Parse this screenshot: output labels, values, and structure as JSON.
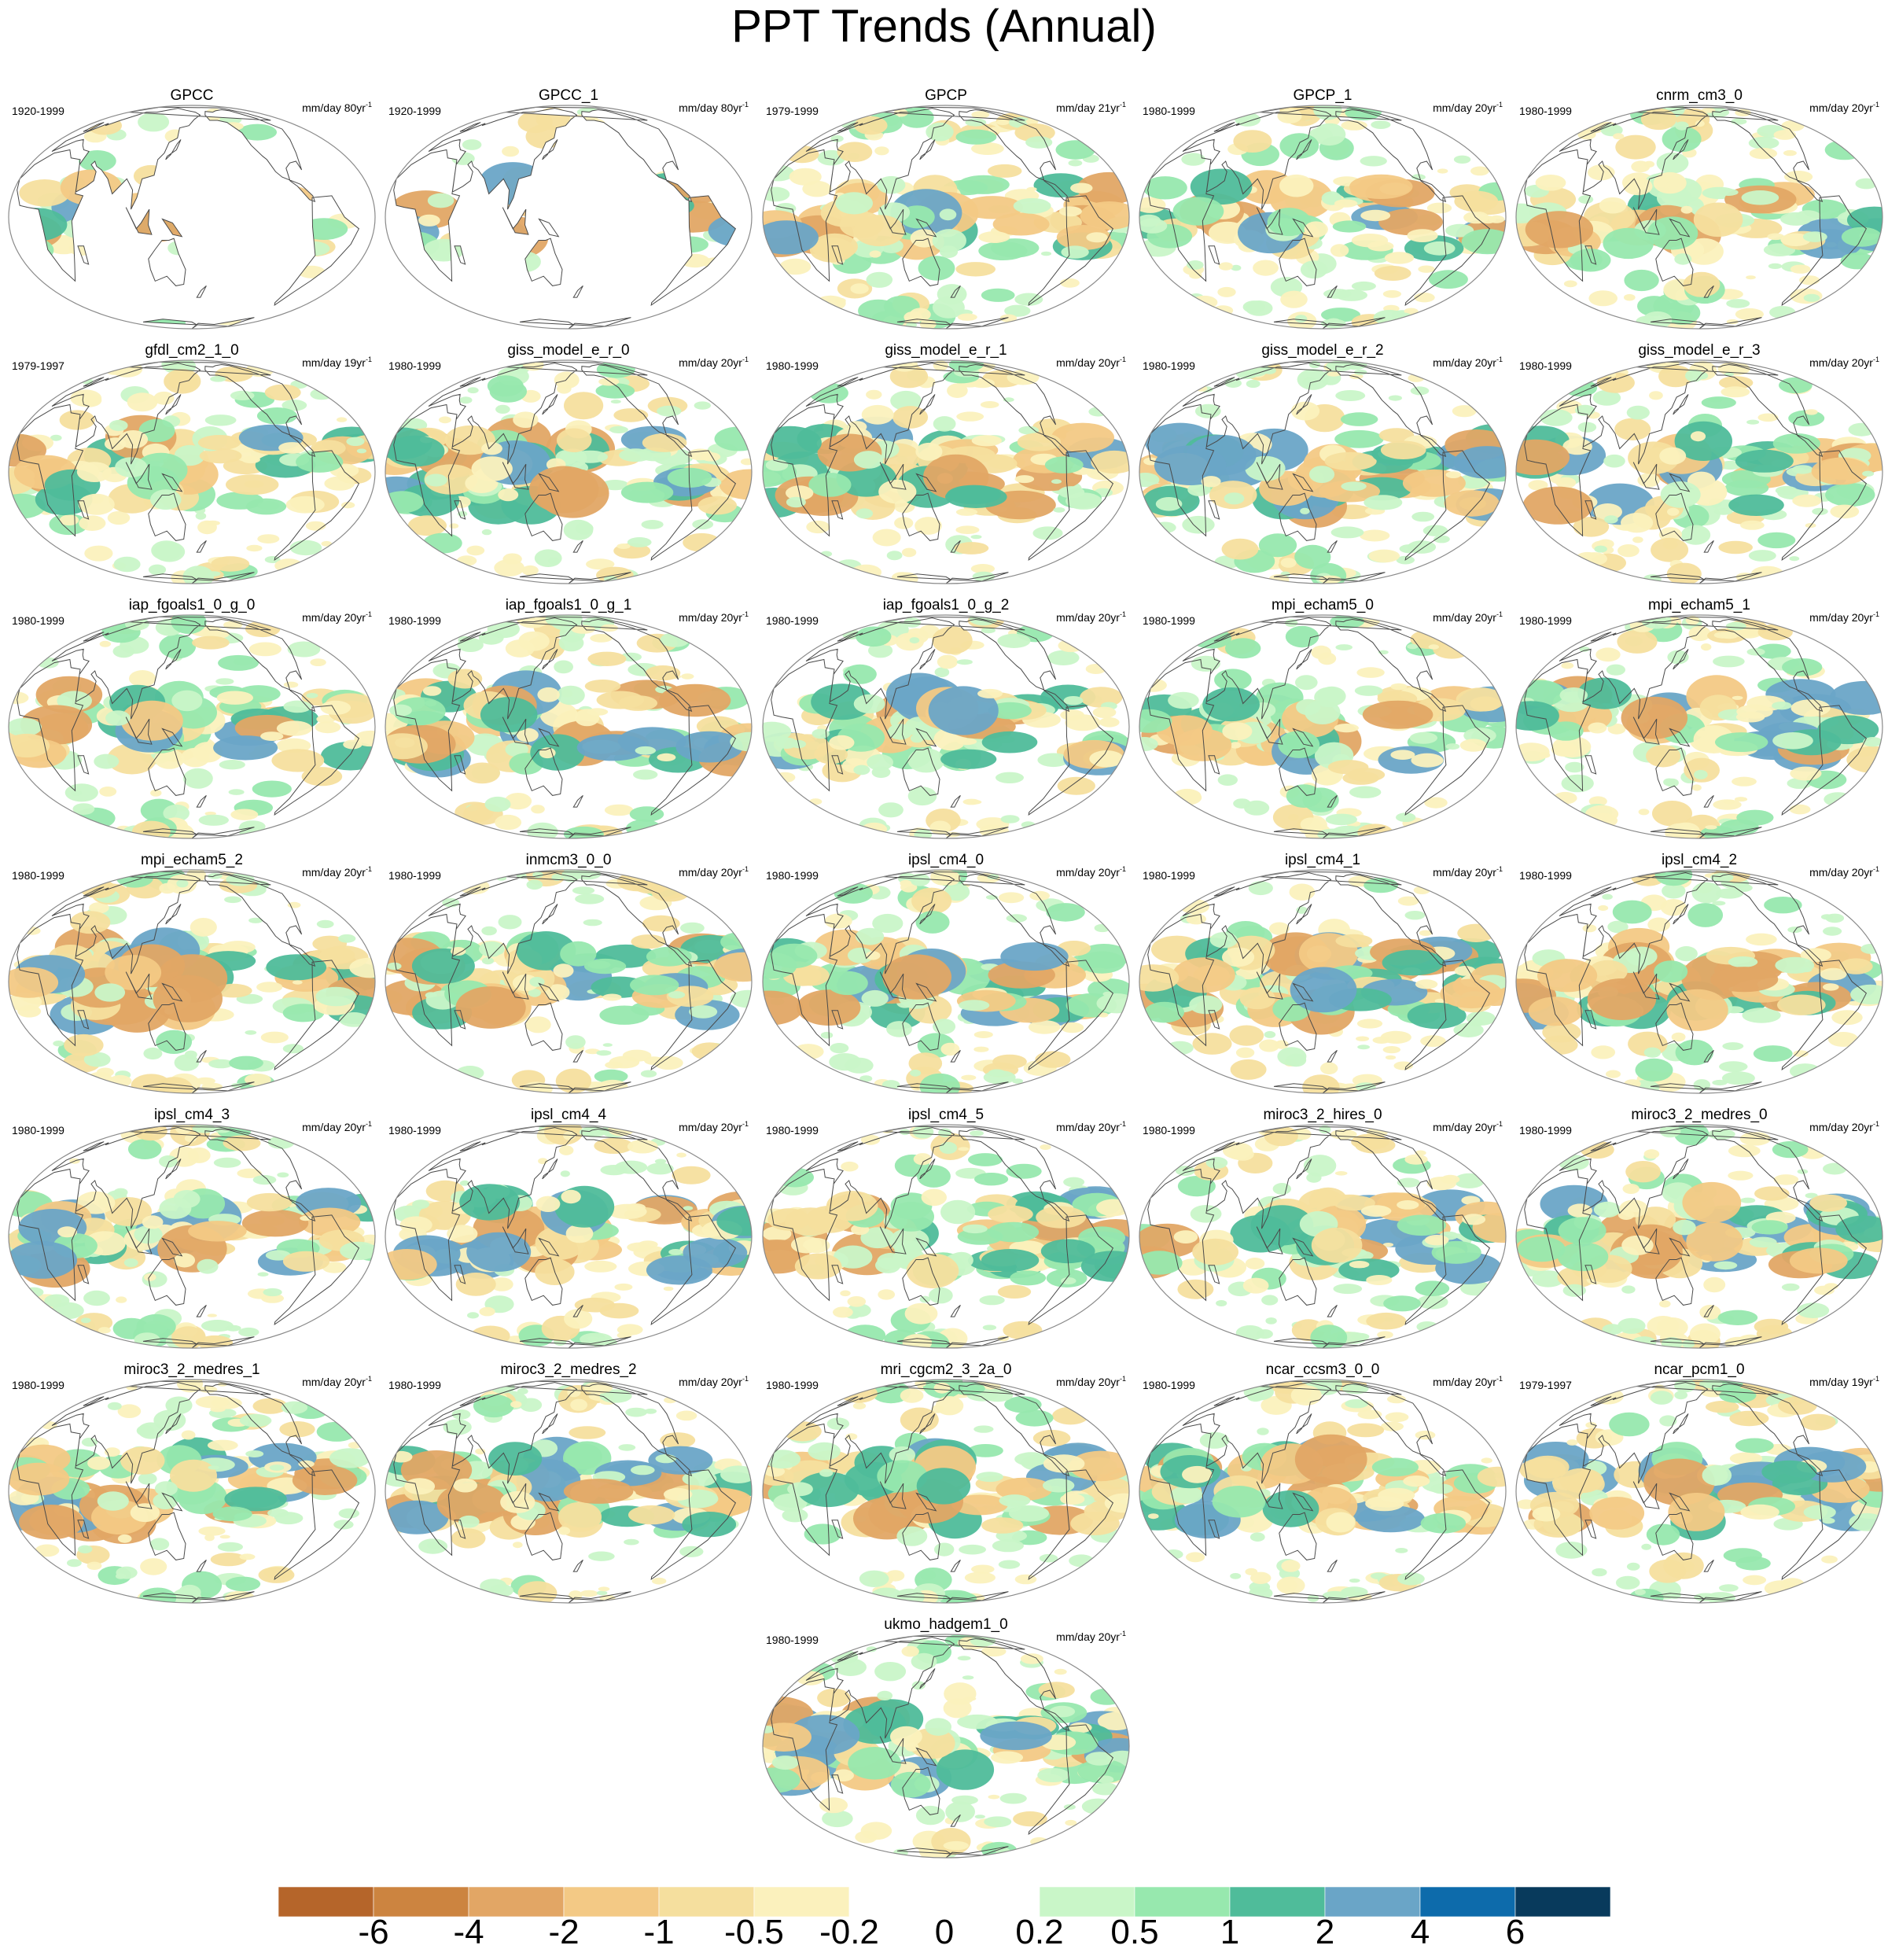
{
  "title": "PPT Trends (Annual)",
  "panels": [
    {
      "name": "GPCC",
      "period": "1920-1999",
      "units": "mm/day 80yr",
      "exp": "-1",
      "mask": "land"
    },
    {
      "name": "GPCC_1",
      "period": "1920-1999",
      "units": "mm/day 80yr",
      "exp": "-1",
      "mask": "land"
    },
    {
      "name": "GPCP",
      "period": "1979-1999",
      "units": "mm/day 21yr",
      "exp": "-1"
    },
    {
      "name": "GPCP_1",
      "period": "1980-1999",
      "units": "mm/day 20yr",
      "exp": "-1"
    },
    {
      "name": "cnrm_cm3_0",
      "period": "1980-1999",
      "units": "mm/day 20yr",
      "exp": "-1"
    },
    {
      "name": "gfdl_cm2_1_0",
      "period": "1979-1997",
      "units": "mm/day 19yr",
      "exp": "-1"
    },
    {
      "name": "giss_model_e_r_0",
      "period": "1980-1999",
      "units": "mm/day 20yr",
      "exp": "-1"
    },
    {
      "name": "giss_model_e_r_1",
      "period": "1980-1999",
      "units": "mm/day 20yr",
      "exp": "-1"
    },
    {
      "name": "giss_model_e_r_2",
      "period": "1980-1999",
      "units": "mm/day 20yr",
      "exp": "-1"
    },
    {
      "name": "giss_model_e_r_3",
      "period": "1980-1999",
      "units": "mm/day 20yr",
      "exp": "-1"
    },
    {
      "name": "iap_fgoals1_0_g_0",
      "period": "1980-1999",
      "units": "mm/day 20yr",
      "exp": "-1"
    },
    {
      "name": "iap_fgoals1_0_g_1",
      "period": "1980-1999",
      "units": "mm/day 20yr",
      "exp": "-1"
    },
    {
      "name": "iap_fgoals1_0_g_2",
      "period": "1980-1999",
      "units": "mm/day 20yr",
      "exp": "-1"
    },
    {
      "name": "mpi_echam5_0",
      "period": "1980-1999",
      "units": "mm/day 20yr",
      "exp": "-1"
    },
    {
      "name": "mpi_echam5_1",
      "period": "1980-1999",
      "units": "mm/day 20yr",
      "exp": "-1"
    },
    {
      "name": "mpi_echam5_2",
      "period": "1980-1999",
      "units": "mm/day 20yr",
      "exp": "-1"
    },
    {
      "name": "inmcm3_0_0",
      "period": "1980-1999",
      "units": "mm/day 20yr",
      "exp": "-1"
    },
    {
      "name": "ipsl_cm4_0",
      "period": "1980-1999",
      "units": "mm/day 20yr",
      "exp": "-1"
    },
    {
      "name": "ipsl_cm4_1",
      "period": "1980-1999",
      "units": "mm/day 20yr",
      "exp": "-1"
    },
    {
      "name": "ipsl_cm4_2",
      "period": "1980-1999",
      "units": "mm/day 20yr",
      "exp": "-1"
    },
    {
      "name": "ipsl_cm4_3",
      "period": "1980-1999",
      "units": "mm/day 20yr",
      "exp": "-1"
    },
    {
      "name": "ipsl_cm4_4",
      "period": "1980-1999",
      "units": "mm/day 20yr",
      "exp": "-1"
    },
    {
      "name": "ipsl_cm4_5",
      "period": "1980-1999",
      "units": "mm/day 20yr",
      "exp": "-1"
    },
    {
      "name": "miroc3_2_hires_0",
      "period": "1980-1999",
      "units": "mm/day 20yr",
      "exp": "-1"
    },
    {
      "name": "miroc3_2_medres_0",
      "period": "1980-1999",
      "units": "mm/day 20yr",
      "exp": "-1"
    },
    {
      "name": "miroc3_2_medres_1",
      "period": "1980-1999",
      "units": "mm/day 20yr",
      "exp": "-1"
    },
    {
      "name": "miroc3_2_medres_2",
      "period": "1980-1999",
      "units": "mm/day 20yr",
      "exp": "-1"
    },
    {
      "name": "mri_cgcm2_3_2a_0",
      "period": "1980-1999",
      "units": "mm/day 20yr",
      "exp": "-1"
    },
    {
      "name": "ncar_ccsm3_0_0",
      "period": "1980-1999",
      "units": "mm/day 20yr",
      "exp": "-1"
    },
    {
      "name": "ncar_pcm1_0",
      "period": "1979-1997",
      "units": "mm/day 19yr",
      "exp": "-1"
    },
    {
      "name": "ukmo_hadgem1_0",
      "period": "1980-1999",
      "units": "mm/day 20yr",
      "exp": "-1"
    }
  ],
  "colorbar": {
    "labels": [
      "-6",
      "-4",
      "-2",
      "-1",
      "-0.5",
      "-0.2",
      "0",
      "0.2",
      "0.5",
      "1",
      "2",
      "4",
      "6"
    ],
    "colors": [
      "#b5652a",
      "#cc8440",
      "#e2a665",
      "#f3c985",
      "#f5df9e",
      "#fbf1bd",
      "#ffffff",
      "#ffffff",
      "#c9f6c8",
      "#97e8ae",
      "#4fbc9a",
      "#6aa5c7",
      "#0d6bab",
      "#083a5c"
    ]
  }
}
